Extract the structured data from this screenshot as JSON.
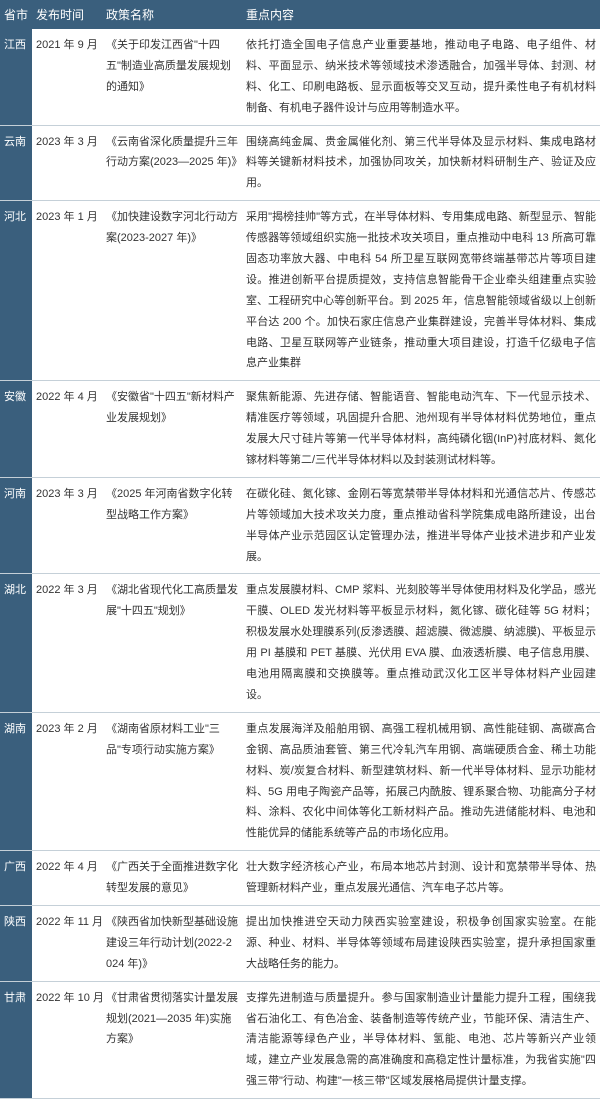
{
  "table": {
    "headers": [
      "省市",
      "发布时间",
      "政策名称",
      "重点内容"
    ],
    "rows": [
      {
        "province": "江西",
        "date": "2021 年 9 月",
        "policy": "《关于印发江西省\"十四五\"制造业高质量发展规划的通知》",
        "content": "依托打造全国电子信息产业重要基地，推动电子电路、电子组件、材料、平面显示、纳米技术等领域技术渗透融合，加强半导体、封测、材料、化工、印刷电路板、显示面板等交叉互动，提升柔性电子有机材料制备、有机电子器件设计与应用等制造水平。"
      },
      {
        "province": "云南",
        "date": "2023 年 3 月",
        "policy": "《云南省深化质量提升三年行动方案(2023—2025 年)》",
        "content": "围绕高纯金属、贵金属催化剂、第三代半导体及显示材料、集成电路材料等关键新材料技术，加强协同攻关，加快新材料研制生产、验证及应用。"
      },
      {
        "province": "河北",
        "date": "2023 年 1 月",
        "policy": "《加快建设数字河北行动方案(2023-2027 年)》",
        "content": "采用\"揭榜挂帅\"等方式，在半导体材料、专用集成电路、新型显示、智能传感器等领域组织实施一批技术攻关项目，重点推动中电科 13 所高可靠固态功率放大器、中电科 54 所卫星互联网宽带终端基带芯片等项目建设。推进创新平台提质提效，支持信息智能骨干企业牵头组建重点实验室、工程研究中心等创新平台。到 2025 年，信息智能领域省级以上创新平台达 200 个。加快石家庄信息产业集群建设，完善半导体材料、集成电路、卫星互联网等产业链条，推动重大项目建设，打造千亿级电子信息产业集群"
      },
      {
        "province": "安徽",
        "date": "2022 年 4 月",
        "policy": "《安徽省\"十四五\"新材料产业发展规划》",
        "content": "聚焦新能源、先进存储、智能语音、智能电动汽车、下一代显示技术、精准医疗等领域，巩固提升合肥、池州现有半导体材料优势地位，重点发展大尺寸硅片等第一代半导体材料，高纯磷化铟(InP)衬底材料、氮化镓材料等第二/三代半导体材料以及封装测试材料等。"
      },
      {
        "province": "河南",
        "date": "2023 年 3 月",
        "policy": "《2025 年河南省数字化转型战略工作方案》",
        "content": "在碳化硅、氮化镓、金刚石等宽禁带半导体材料和光通信芯片、传感芯片等领域加大技术攻关力度，重点推动省科学院集成电路所建设，出台半导体产业示范园区认定管理办法，推进半导体产业技术进步和产业发展。"
      },
      {
        "province": "湖北",
        "date": "2022 年 3 月",
        "policy": "《湖北省现代化工高质量发展\"十四五\"规划》",
        "content": "重点发展膜材料、CMP 浆料、光刻胶等半导体使用材料及化学品，感光干膜、OLED 发光材料等平板显示材料，氮化镓、碳化硅等 5G 材料；积极发展水处理膜系列(反渗透膜、超滤膜、微滤膜、纳滤膜)、平板显示用 PI 基膜和 PET 基膜、光伏用 EVA 膜、血液透析膜、电子信息用膜、电池用隔离膜和交换膜等。重点推动武汉化工区半导体材料产业园建设。"
      },
      {
        "province": "湖南",
        "date": "2023 年 2 月",
        "policy": "《湖南省原材料工业\"三品\"专项行动实施方案》",
        "content": "重点发展海洋及船舶用钢、高强工程机械用钢、高性能硅钢、高碳高合金钢、高品质油套管、第三代冷轧汽车用钢、高端硬质合金、稀土功能材料、炭/炭复合材料、新型建筑材料、新一代半导体材料、显示功能材料、5G 用电子陶瓷产品等，拓展己内酰胺、锂系聚合物、功能高分子材料、涂料、农化中间体等化工新材料产品。推动先进储能材料、电池和性能优异的储能系统等产品的市场化应用。"
      },
      {
        "province": "广西",
        "date": "2022 年 4 月",
        "policy": "《广西关于全面推进数字化转型发展的意见》",
        "content": "壮大数字经济核心产业，布局本地芯片封测、设计和宽禁带半导体、热管理新材料产业，重点发展光通信、汽车电子芯片等。"
      },
      {
        "province": "陕西",
        "date": "2022 年 11 月",
        "policy": "《陕西省加快新型基础设施建设三年行动计划(2022-2024 年)》",
        "content": "提出加快推进空天动力陕西实验室建设，积极争创国家实验室。在能源、种业、材料、半导体等领域布局建设陕西实验室，提升承担国家重大战略任务的能力。"
      },
      {
        "province": "甘肃",
        "date": "2022 年 10 月",
        "policy": "《甘肃省贯彻落实计量发展规划(2021—2035 年)实施方案》",
        "content": "支撑先进制造与质量提升。参与国家制造业计量能力提升工程，围绕我省石油化工、有色冶金、装备制造等传统产业，节能环保、清洁生产、清洁能源等绿色产业，半导体材料、氢能、电池、芯片等新兴产业领域，建立产业发展急需的高准确度和高稳定性计量标准，为我省实施\"四强三带\"行动、构建\"一核三带\"区域发展格局提供计量支撑。"
      }
    ]
  },
  "colors": {
    "header_bg": "#3a5f7d",
    "header_text": "#ffffff",
    "row_border": "#c5d0d8",
    "cell_text": "#333333"
  }
}
